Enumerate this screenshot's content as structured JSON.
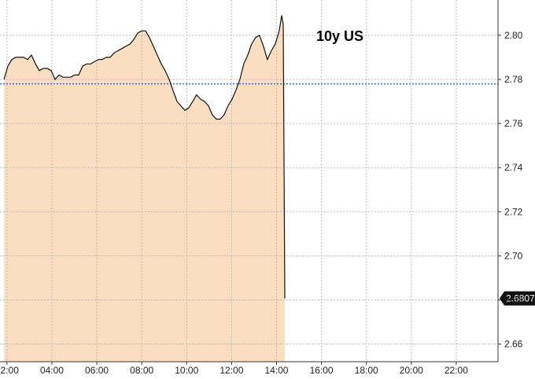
{
  "chart_data": {
    "type": "area",
    "annotation": "10y US",
    "xlim": [
      1.69,
      23.86
    ],
    "ylim": [
      2.652,
      2.816
    ],
    "xticks": [
      {
        "value": 2,
        "label": "02:00"
      },
      {
        "value": 4,
        "label": "04:00"
      },
      {
        "value": 6,
        "label": "06:00"
      },
      {
        "value": 8,
        "label": "08:00"
      },
      {
        "value": 10,
        "label": "10:00"
      },
      {
        "value": 12,
        "label": "12:00"
      },
      {
        "value": 14,
        "label": "14:00"
      },
      {
        "value": 16,
        "label": "16:00"
      },
      {
        "value": 18,
        "label": "18:00"
      },
      {
        "value": 20,
        "label": "20:00"
      },
      {
        "value": 22,
        "label": "22:00"
      }
    ],
    "yticks": [
      2.66,
      2.68,
      {
        "value": 2.7,
        "label": "2.70"
      },
      2.72,
      2.74,
      2.76,
      2.78,
      {
        "value": 2.8,
        "label": "2.80"
      }
    ],
    "grid": true,
    "reference_line": 2.778,
    "reference_color": "#2f6fd6",
    "x": [
      1.87,
      2.04,
      2.22,
      2.39,
      2.57,
      2.74,
      2.92,
      3.09,
      3.27,
      3.44,
      3.62,
      3.79,
      3.97,
      4.14,
      4.32,
      4.49,
      4.67,
      4.84,
      5.02,
      5.19,
      5.37,
      5.54,
      5.72,
      5.89,
      6.07,
      6.24,
      6.42,
      6.59,
      6.77,
      6.94,
      7.12,
      7.29,
      7.47,
      7.64,
      7.82,
      7.99,
      8.17,
      8.34,
      8.52,
      8.69,
      8.87,
      9.04,
      9.22,
      9.39,
      9.57,
      9.74,
      9.92,
      10.09,
      10.27,
      10.44,
      10.62,
      10.79,
      10.97,
      11.14,
      11.32,
      11.49,
      11.67,
      11.84,
      12.02,
      12.19,
      12.37,
      12.54,
      12.72,
      12.89,
      13.07,
      13.24,
      13.42,
      13.59,
      13.77,
      13.94,
      14.12,
      14.23,
      14.3,
      14.37
    ],
    "series": [
      {
        "name": "10y US",
        "color": "#111111",
        "fill": "#fbddc0",
        "values": [
          2.78,
          2.786,
          2.789,
          2.79,
          2.79,
          2.79,
          2.789,
          2.791,
          2.787,
          2.784,
          2.785,
          2.785,
          2.784,
          2.78,
          2.782,
          2.781,
          2.781,
          2.781,
          2.782,
          2.782,
          2.786,
          2.787,
          2.787,
          2.788,
          2.789,
          2.789,
          2.79,
          2.79,
          2.792,
          2.793,
          2.794,
          2.795,
          2.796,
          2.798,
          2.801,
          2.802,
          2.802,
          2.799,
          2.795,
          2.791,
          2.787,
          2.784,
          2.78,
          2.775,
          2.77,
          2.768,
          2.766,
          2.767,
          2.77,
          2.773,
          2.771,
          2.77,
          2.768,
          2.764,
          2.762,
          2.762,
          2.764,
          2.768,
          2.771,
          2.775,
          2.78,
          2.787,
          2.791,
          2.796,
          2.799,
          2.8,
          2.795,
          2.789,
          2.793,
          2.796,
          2.802,
          2.809,
          2.805,
          2.6807
        ]
      }
    ]
  }
}
